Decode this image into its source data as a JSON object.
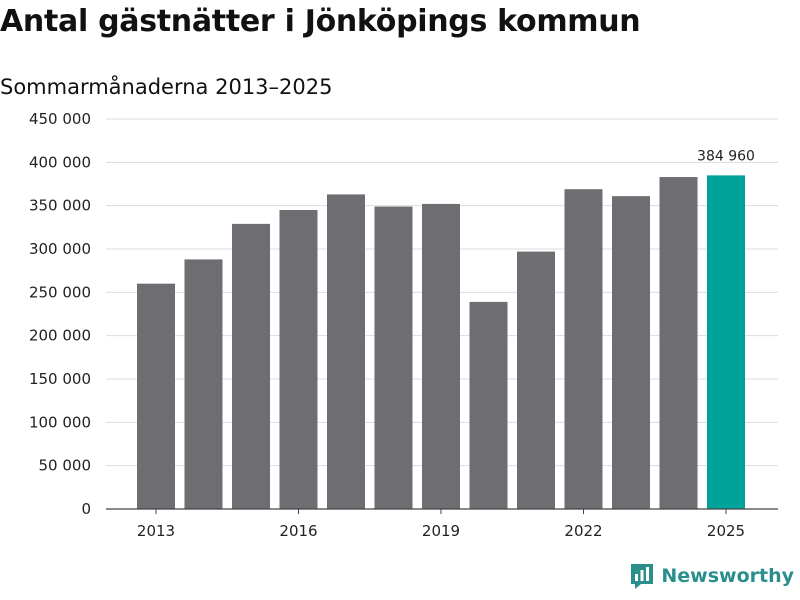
{
  "chart_data": {
    "type": "bar",
    "title": "Antal gästnätter i Jönköpings kommun",
    "subtitle": "Sommarmånaderna 2013–2025",
    "categories": [
      "2013",
      "2014",
      "2015",
      "2016",
      "2017",
      "2018",
      "2019",
      "2020",
      "2021",
      "2022",
      "2023",
      "2024",
      "2025"
    ],
    "x_tick_labels": [
      "2013",
      "2016",
      "2019",
      "2022",
      "2025"
    ],
    "values": [
      260000,
      288000,
      329000,
      345000,
      363000,
      349000,
      352000,
      239000,
      297000,
      369000,
      361000,
      383000,
      384960
    ],
    "y_ticks": [
      0,
      50000,
      100000,
      150000,
      200000,
      250000,
      300000,
      350000,
      400000,
      450000
    ],
    "y_tick_labels": [
      "0",
      "50 000",
      "100 000",
      "150 000",
      "200 000",
      "250 000",
      "300 000",
      "350 000",
      "400 000",
      "450 000"
    ],
    "ylim": [
      0,
      450000
    ],
    "highlight_index": 12,
    "highlight_label": "384 960",
    "colors": {
      "bar": "#6e6d72",
      "highlight": "#00a39a",
      "grid": "#dddddd",
      "axis": "#444444"
    },
    "grid": true
  },
  "brand": {
    "name": "Newsworthy",
    "icon": "newsworthy-logo-icon"
  }
}
